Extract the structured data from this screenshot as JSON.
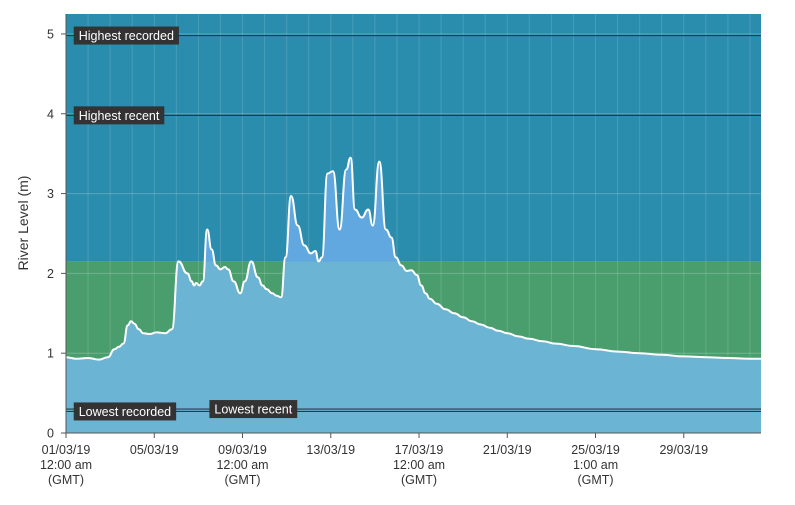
{
  "chart_data": {
    "type": "area",
    "ylabel": "River Level (m)",
    "ylim": [
      0,
      5.25
    ],
    "y_ticks": [
      "0",
      "1",
      "2",
      "3",
      "4",
      "5"
    ],
    "x_range_days": [
      0,
      31.5
    ],
    "x_ticks": [
      {
        "day": 0,
        "lines": [
          "01/03/19",
          "12:00 am",
          "(GMT)"
        ]
      },
      {
        "day": 4,
        "lines": [
          "05/03/19"
        ]
      },
      {
        "day": 8,
        "lines": [
          "09/03/19",
          "12:00 am",
          "(GMT)"
        ]
      },
      {
        "day": 12,
        "lines": [
          "13/03/19"
        ]
      },
      {
        "day": 16,
        "lines": [
          "17/03/19",
          "12:00 am",
          "(GMT)"
        ]
      },
      {
        "day": 20,
        "lines": [
          "21/03/19"
        ]
      },
      {
        "day": 24,
        "lines": [
          "25/03/19",
          "1:00 am",
          "(GMT)"
        ]
      },
      {
        "day": 28,
        "lines": [
          "29/03/19"
        ]
      }
    ],
    "bands": [
      {
        "from": 0,
        "to": 0.3,
        "color": "#6cb4d4"
      },
      {
        "from": 0.3,
        "to": 2.15,
        "color": "#4a9e6e"
      },
      {
        "from": 2.15,
        "to": 5.25,
        "color": "#2a8dad"
      }
    ],
    "reference_lines": [
      {
        "label": "Highest recorded",
        "value": 4.98,
        "label_day": 0.35
      },
      {
        "label": "Highest recent",
        "value": 3.98,
        "label_day": 0.35
      },
      {
        "label": "Lowest recorded",
        "value": 0.27,
        "label_day": 0.35
      },
      {
        "label": "Lowest recent",
        "value": 0.3,
        "label_day": 6.5
      }
    ],
    "series": [
      {
        "fill_below_band": "#6cb4d4",
        "fill_above_band": "#62a8e0",
        "line_color": "#ffffff",
        "x": [
          0,
          0.5,
          1,
          1.5,
          1.9,
          2.2,
          2.4,
          2.6,
          2.8,
          2.95,
          3.1,
          3.3,
          3.5,
          3.8,
          4.1,
          4.5,
          4.8,
          5.1,
          5.5,
          5.7,
          5.8,
          5.9,
          6.05,
          6.2,
          6.4,
          6.6,
          6.8,
          7.0,
          7.2,
          7.35,
          7.6,
          7.9,
          8.1,
          8.4,
          8.7,
          8.9,
          9.1,
          9.35,
          9.55,
          9.75,
          9.95,
          10.2,
          10.5,
          10.8,
          11.1,
          11.3,
          11.45,
          11.6,
          11.85,
          12.1,
          12.4,
          12.7,
          12.9,
          13.1,
          13.4,
          13.7,
          13.9,
          14.2,
          14.5,
          14.75,
          14.95,
          15.2,
          15.45,
          15.65,
          15.9,
          16.1,
          16.3,
          16.5,
          16.8,
          17.2,
          17.6,
          18.0,
          18.4,
          18.8,
          19.2,
          19.6,
          20.0,
          20.5,
          21.0,
          21.6,
          22.2,
          23.0,
          24.0,
          25.0,
          26.0,
          27.0,
          28.0,
          29.0,
          30.0,
          31.0,
          31.5
        ],
        "y": [
          0.95,
          0.93,
          0.94,
          0.92,
          0.95,
          1.05,
          1.08,
          1.12,
          1.35,
          1.4,
          1.37,
          1.3,
          1.25,
          1.24,
          1.26,
          1.25,
          1.3,
          2.15,
          2.0,
          1.9,
          1.85,
          1.88,
          1.85,
          1.9,
          2.55,
          2.3,
          2.1,
          2.05,
          2.08,
          2.05,
          1.9,
          1.75,
          1.9,
          2.15,
          1.95,
          1.85,
          1.8,
          1.75,
          1.72,
          1.7,
          2.2,
          2.97,
          2.6,
          2.35,
          2.25,
          2.28,
          2.15,
          2.2,
          3.25,
          3.28,
          2.55,
          3.3,
          3.45,
          2.8,
          2.7,
          2.8,
          2.6,
          3.4,
          2.55,
          2.45,
          2.2,
          2.1,
          2.03,
          2.04,
          1.98,
          1.85,
          1.75,
          1.68,
          1.62,
          1.55,
          1.5,
          1.45,
          1.4,
          1.36,
          1.32,
          1.28,
          1.25,
          1.21,
          1.18,
          1.15,
          1.12,
          1.09,
          1.05,
          1.02,
          1.0,
          0.98,
          0.96,
          0.95,
          0.94,
          0.93,
          0.93
        ]
      }
    ]
  }
}
